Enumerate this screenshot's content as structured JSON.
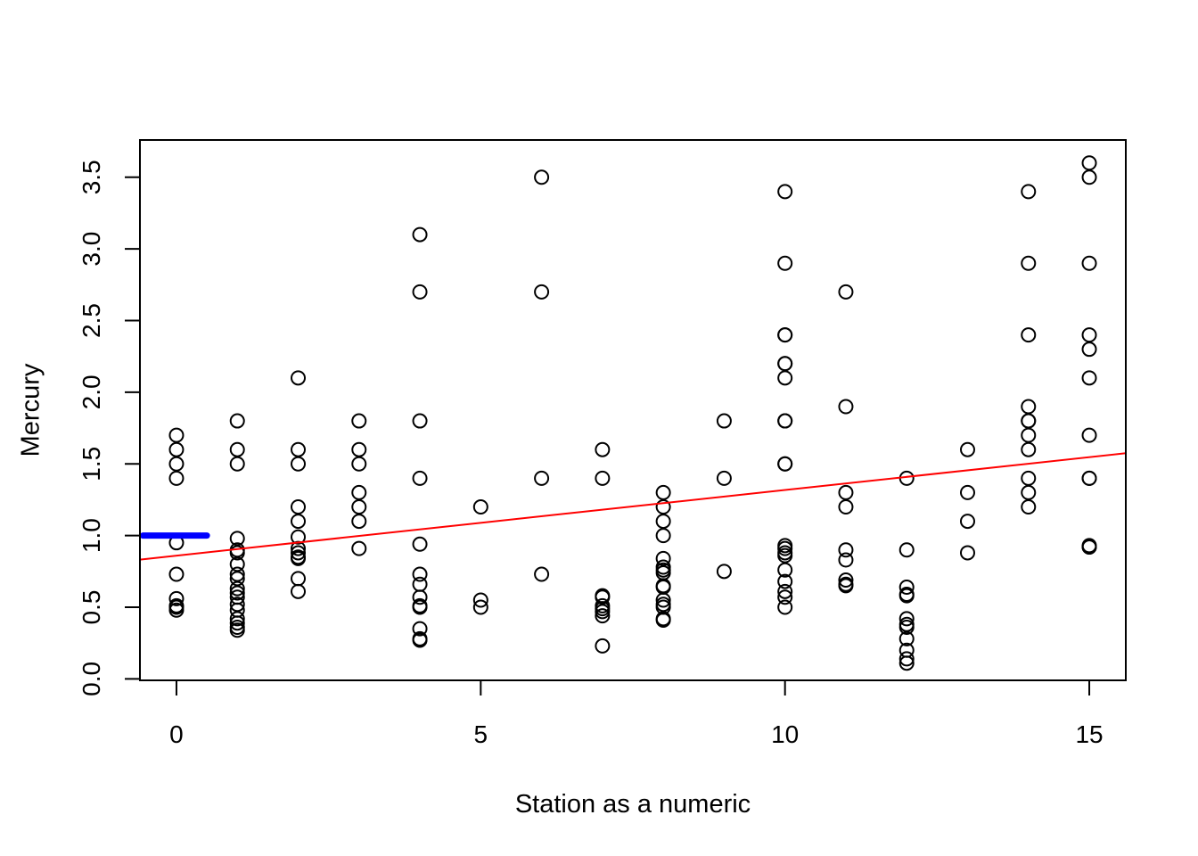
{
  "chart_data": {
    "type": "scatter",
    "title": "",
    "xlabel": "Station as a numeric",
    "ylabel": "Mercury",
    "xlim": [
      -0.6,
      15.6
    ],
    "ylim": [
      -0.01,
      3.76
    ],
    "x_ticks": [
      0,
      5,
      10,
      15
    ],
    "x_tick_labels": [
      "0",
      "5",
      "10",
      "15"
    ],
    "y_ticks": [
      0.0,
      0.5,
      1.0,
      1.5,
      2.0,
      2.5,
      3.0,
      3.5
    ],
    "y_tick_labels": [
      "0.0",
      "0.5",
      "1.0",
      "1.5",
      "2.0",
      "2.5",
      "3.0",
      "3.5"
    ],
    "grid": false,
    "points": {
      "marker": "open-circle",
      "color": "#000000",
      "x": [
        0,
        0,
        0,
        0,
        0,
        0,
        0,
        0,
        0,
        0,
        1,
        1,
        1,
        1,
        1,
        1,
        1,
        1,
        1,
        1,
        1,
        1,
        1,
        1,
        1,
        1,
        1,
        1,
        2,
        2,
        2,
        2,
        2,
        2,
        2,
        2,
        2,
        2,
        2,
        2,
        3,
        3,
        3,
        3,
        3,
        3,
        3,
        4,
        4,
        4,
        4,
        4,
        4,
        4,
        4,
        4,
        4,
        4,
        4,
        4,
        5,
        5,
        5,
        6,
        6,
        6,
        6,
        7,
        7,
        7,
        7,
        7,
        7,
        7,
        7,
        7,
        8,
        8,
        8,
        8,
        8,
        8,
        8,
        8,
        8,
        8,
        8,
        8,
        8,
        8,
        8,
        9,
        9,
        9,
        10,
        10,
        10,
        10,
        10,
        10,
        10,
        10,
        10,
        10,
        10,
        10,
        10,
        10,
        10,
        10,
        10,
        10,
        10,
        10,
        11,
        11,
        11,
        11,
        11,
        11,
        11,
        11,
        11,
        12,
        12,
        12,
        12,
        12,
        12,
        12,
        12,
        12,
        12,
        12,
        12,
        13,
        13,
        13,
        13,
        14,
        14,
        14,
        14,
        14,
        14,
        14,
        14,
        14,
        14,
        14,
        15,
        15,
        15,
        15,
        15,
        15,
        15,
        15,
        15,
        15,
        15,
        15
      ],
      "y": [
        1.7,
        1.6,
        1.5,
        1.4,
        0.95,
        0.73,
        0.56,
        0.51,
        0.5,
        0.48,
        1.8,
        1.6,
        1.5,
        0.98,
        0.9,
        0.88,
        0.8,
        0.73,
        0.7,
        0.63,
        0.6,
        0.57,
        0.52,
        0.48,
        0.42,
        0.39,
        0.36,
        0.34,
        2.1,
        1.6,
        1.5,
        1.2,
        1.1,
        0.99,
        0.91,
        0.88,
        0.85,
        0.84,
        0.7,
        0.61,
        1.8,
        1.6,
        1.5,
        1.3,
        1.2,
        1.1,
        0.91,
        3.1,
        2.7,
        1.8,
        1.4,
        0.94,
        0.73,
        0.66,
        0.57,
        0.51,
        0.5,
        0.35,
        0.28,
        0.27,
        1.2,
        0.55,
        0.5,
        3.5,
        2.7,
        1.4,
        0.73,
        1.6,
        1.4,
        0.58,
        0.57,
        0.51,
        0.49,
        0.47,
        0.44,
        0.23,
        1.3,
        1.2,
        1.1,
        1.0,
        0.84,
        0.78,
        0.76,
        0.74,
        0.65,
        0.64,
        0.55,
        0.52,
        0.5,
        0.42,
        0.41,
        1.8,
        1.4,
        0.75,
        3.4,
        2.9,
        2.4,
        2.4,
        2.2,
        2.2,
        2.1,
        1.8,
        1.8,
        1.5,
        1.5,
        0.93,
        0.91,
        0.88,
        0.86,
        0.76,
        0.68,
        0.61,
        0.57,
        0.5,
        2.7,
        1.9,
        1.3,
        1.2,
        0.9,
        0.83,
        0.69,
        0.66,
        0.65,
        1.4,
        0.9,
        0.64,
        0.59,
        0.58,
        0.42,
        0.38,
        0.36,
        0.28,
        0.2,
        0.14,
        0.11,
        1.6,
        1.3,
        1.1,
        0.88,
        3.4,
        2.9,
        2.4,
        1.9,
        1.8,
        1.8,
        1.7,
        1.6,
        1.4,
        1.3,
        1.2,
        3.6,
        3.5,
        2.9,
        2.4,
        2.3,
        2.1,
        1.7,
        1.4,
        1.4,
        0.93,
        0.92,
        0.92
      ]
    },
    "fit_line": {
      "color": "#ff0000",
      "intercept": 0.86,
      "slope": 0.0458
    },
    "mean_segment": {
      "color": "#0000ff",
      "y": 1.0,
      "x_from": -0.55,
      "x_to": 0.5
    }
  }
}
